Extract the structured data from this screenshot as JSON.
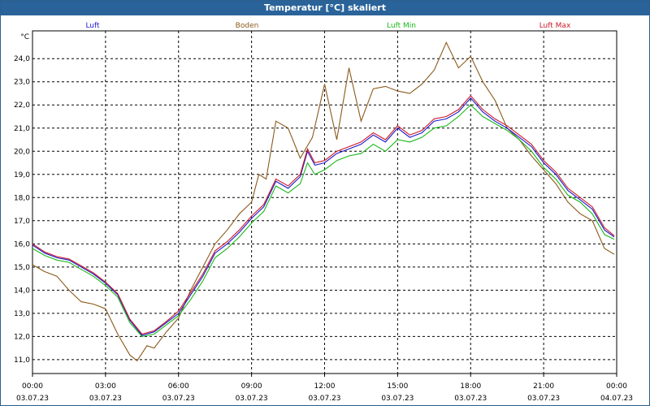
{
  "chart_data": {
    "type": "line",
    "title": "Temperatur [°C] skaliert",
    "ylabel": "°C",
    "ylim": [
      10.4,
      25.2
    ],
    "xlim": [
      0,
      24
    ],
    "yticks": [
      11,
      12,
      13,
      14,
      15,
      16,
      17,
      18,
      19,
      20,
      21,
      22,
      23,
      24
    ],
    "ytick_labels": [
      "11,0",
      "12,0",
      "13,0",
      "14,0",
      "15,0",
      "16,0",
      "17,0",
      "18,0",
      "19,0",
      "20,0",
      "21,0",
      "22,0",
      "23,0",
      "24,0"
    ],
    "xticks": [
      {
        "time": "00:00",
        "date": "03.07.23"
      },
      {
        "time": "03:00",
        "date": "03.07.23"
      },
      {
        "time": "06:00",
        "date": "03.07.23"
      },
      {
        "time": "09:00",
        "date": "03.07.23"
      },
      {
        "time": "12:00",
        "date": "03.07.23"
      },
      {
        "time": "15:00",
        "date": "03.07.23"
      },
      {
        "time": "18:00",
        "date": "03.07.23"
      },
      {
        "time": "21:00",
        "date": "03.07.23"
      },
      {
        "time": "00:00",
        "date": "04.07.23"
      }
    ],
    "grid": true,
    "legend_position": "top",
    "series": [
      {
        "name": "Luft",
        "color": "#1a1acc",
        "points": [
          [
            0,
            15.95
          ],
          [
            0.5,
            15.6
          ],
          [
            1,
            15.4
          ],
          [
            1.5,
            15.3
          ],
          [
            2,
            15.0
          ],
          [
            2.5,
            14.7
          ],
          [
            3,
            14.3
          ],
          [
            3.5,
            13.8
          ],
          [
            4,
            12.7
          ],
          [
            4.5,
            12.05
          ],
          [
            5,
            12.2
          ],
          [
            5.5,
            12.6
          ],
          [
            6,
            13.0
          ],
          [
            6.5,
            13.8
          ],
          [
            7,
            14.6
          ],
          [
            7.5,
            15.6
          ],
          [
            8,
            16.0
          ],
          [
            8.5,
            16.5
          ],
          [
            9,
            17.1
          ],
          [
            9.5,
            17.6
          ],
          [
            10,
            18.7
          ],
          [
            10.5,
            18.4
          ],
          [
            11,
            18.9
          ],
          [
            11.3,
            20.0
          ],
          [
            11.6,
            19.4
          ],
          [
            12,
            19.5
          ],
          [
            12.5,
            19.9
          ],
          [
            13,
            20.1
          ],
          [
            13.5,
            20.3
          ],
          [
            14,
            20.7
          ],
          [
            14.5,
            20.4
          ],
          [
            15,
            21.0
          ],
          [
            15.5,
            20.6
          ],
          [
            16,
            20.8
          ],
          [
            16.5,
            21.3
          ],
          [
            17,
            21.4
          ],
          [
            17.5,
            21.7
          ],
          [
            18,
            22.3
          ],
          [
            18.5,
            21.7
          ],
          [
            19,
            21.3
          ],
          [
            19.5,
            21.0
          ],
          [
            20,
            20.6
          ],
          [
            20.5,
            20.2
          ],
          [
            21,
            19.5
          ],
          [
            21.5,
            19.0
          ],
          [
            22,
            18.3
          ],
          [
            22.5,
            17.9
          ],
          [
            23,
            17.5
          ],
          [
            23.5,
            16.6
          ],
          [
            23.9,
            16.3
          ]
        ]
      },
      {
        "name": "Boden",
        "color": "#8a5a1a",
        "points": [
          [
            0,
            15.1
          ],
          [
            0.5,
            14.8
          ],
          [
            1,
            14.6
          ],
          [
            1.5,
            14.0
          ],
          [
            2,
            13.5
          ],
          [
            2.5,
            13.4
          ],
          [
            3,
            13.2
          ],
          [
            3.5,
            12.1
          ],
          [
            4,
            11.2
          ],
          [
            4.3,
            10.95
          ],
          [
            4.7,
            11.6
          ],
          [
            5,
            11.5
          ],
          [
            5.5,
            12.2
          ],
          [
            6,
            12.8
          ],
          [
            6.5,
            14.0
          ],
          [
            7,
            15.0
          ],
          [
            7.5,
            16.0
          ],
          [
            8,
            16.6
          ],
          [
            8.5,
            17.3
          ],
          [
            9,
            17.8
          ],
          [
            9.3,
            19.0
          ],
          [
            9.6,
            18.8
          ],
          [
            10,
            21.3
          ],
          [
            10.5,
            21.0
          ],
          [
            11,
            19.7
          ],
          [
            11.5,
            20.6
          ],
          [
            12,
            22.9
          ],
          [
            12.5,
            20.5
          ],
          [
            13,
            23.6
          ],
          [
            13.5,
            21.3
          ],
          [
            14,
            22.7
          ],
          [
            14.5,
            22.8
          ],
          [
            15,
            22.6
          ],
          [
            15.5,
            22.5
          ],
          [
            16,
            22.9
          ],
          [
            16.5,
            23.5
          ],
          [
            17,
            24.7
          ],
          [
            17.5,
            23.6
          ],
          [
            18,
            24.1
          ],
          [
            18.5,
            23.0
          ],
          [
            19,
            22.2
          ],
          [
            19.5,
            21.0
          ],
          [
            20,
            20.5
          ],
          [
            20.5,
            19.8
          ],
          [
            21,
            19.2
          ],
          [
            21.5,
            18.6
          ],
          [
            22,
            17.8
          ],
          [
            22.5,
            17.3
          ],
          [
            23,
            17.0
          ],
          [
            23.5,
            15.8
          ],
          [
            23.9,
            15.55
          ]
        ]
      },
      {
        "name": "Luft Min",
        "color": "#1ab81a",
        "points": [
          [
            0,
            15.8
          ],
          [
            0.5,
            15.5
          ],
          [
            1,
            15.3
          ],
          [
            1.5,
            15.2
          ],
          [
            2,
            14.9
          ],
          [
            2.5,
            14.6
          ],
          [
            3,
            14.2
          ],
          [
            3.5,
            13.7
          ],
          [
            4,
            12.6
          ],
          [
            4.5,
            12.0
          ],
          [
            5,
            12.1
          ],
          [
            5.5,
            12.5
          ],
          [
            6,
            12.9
          ],
          [
            6.5,
            13.6
          ],
          [
            7,
            14.4
          ],
          [
            7.5,
            15.4
          ],
          [
            8,
            15.8
          ],
          [
            8.5,
            16.3
          ],
          [
            9,
            16.9
          ],
          [
            9.5,
            17.4
          ],
          [
            10,
            18.5
          ],
          [
            10.5,
            18.2
          ],
          [
            11,
            18.6
          ],
          [
            11.3,
            19.5
          ],
          [
            11.6,
            19.0
          ],
          [
            12,
            19.2
          ],
          [
            12.5,
            19.6
          ],
          [
            13,
            19.8
          ],
          [
            13.5,
            19.9
          ],
          [
            14,
            20.3
          ],
          [
            14.5,
            20.0
          ],
          [
            15,
            20.5
          ],
          [
            15.5,
            20.4
          ],
          [
            16,
            20.6
          ],
          [
            16.5,
            21.0
          ],
          [
            17,
            21.1
          ],
          [
            17.5,
            21.5
          ],
          [
            18,
            22.0
          ],
          [
            18.5,
            21.5
          ],
          [
            19,
            21.2
          ],
          [
            19.5,
            20.9
          ],
          [
            20,
            20.5
          ],
          [
            20.5,
            20.0
          ],
          [
            21,
            19.3
          ],
          [
            21.5,
            18.8
          ],
          [
            22,
            18.1
          ],
          [
            22.5,
            17.8
          ],
          [
            23,
            17.3
          ],
          [
            23.5,
            16.4
          ],
          [
            23.9,
            16.2
          ]
        ]
      },
      {
        "name": "Luft Max",
        "color": "#cc1a2a",
        "points": [
          [
            0,
            16.0
          ],
          [
            0.5,
            15.65
          ],
          [
            1,
            15.45
          ],
          [
            1.5,
            15.35
          ],
          [
            2,
            15.05
          ],
          [
            2.5,
            14.75
          ],
          [
            3,
            14.35
          ],
          [
            3.5,
            13.85
          ],
          [
            4,
            12.75
          ],
          [
            4.5,
            12.1
          ],
          [
            5,
            12.25
          ],
          [
            5.5,
            12.65
          ],
          [
            6,
            13.1
          ],
          [
            6.5,
            13.9
          ],
          [
            7,
            14.7
          ],
          [
            7.5,
            15.7
          ],
          [
            8,
            16.1
          ],
          [
            8.5,
            16.6
          ],
          [
            9,
            17.2
          ],
          [
            9.5,
            17.7
          ],
          [
            10,
            18.8
          ],
          [
            10.5,
            18.5
          ],
          [
            11,
            19.0
          ],
          [
            11.3,
            20.1
          ],
          [
            11.6,
            19.5
          ],
          [
            12,
            19.6
          ],
          [
            12.5,
            20.0
          ],
          [
            13,
            20.2
          ],
          [
            13.5,
            20.4
          ],
          [
            14,
            20.8
          ],
          [
            14.5,
            20.5
          ],
          [
            15,
            21.1
          ],
          [
            15.5,
            20.7
          ],
          [
            16,
            20.9
          ],
          [
            16.5,
            21.4
          ],
          [
            17,
            21.5
          ],
          [
            17.5,
            21.8
          ],
          [
            18,
            22.4
          ],
          [
            18.5,
            21.8
          ],
          [
            19,
            21.4
          ],
          [
            19.5,
            21.1
          ],
          [
            20,
            20.7
          ],
          [
            20.5,
            20.3
          ],
          [
            21,
            19.6
          ],
          [
            21.5,
            19.1
          ],
          [
            22,
            18.4
          ],
          [
            22.5,
            18.0
          ],
          [
            23,
            17.6
          ],
          [
            23.5,
            16.7
          ],
          [
            23.9,
            16.35
          ]
        ]
      }
    ]
  }
}
